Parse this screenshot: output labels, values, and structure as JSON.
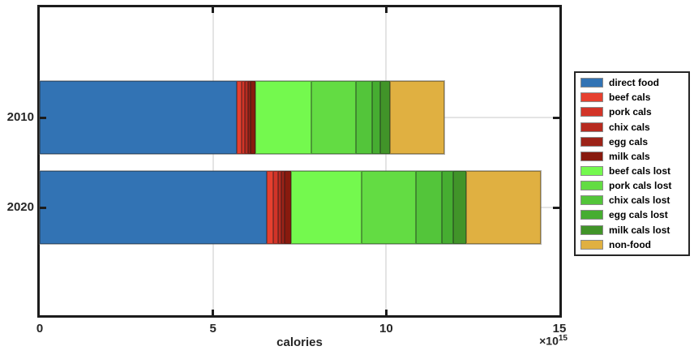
{
  "figure": {
    "xlabel": "calories",
    "scale_base": "×10",
    "scale_exponent": "15"
  },
  "chart_data": {
    "type": "bar",
    "orientation": "horizontal",
    "stacked": true,
    "title": "",
    "xlabel": "calories",
    "x_unit_scale": "×10^15",
    "xlim": [
      0,
      15
    ],
    "x_ticks": [
      0,
      5,
      10,
      15
    ],
    "grid": true,
    "legend_position": "outside-right",
    "categories": [
      "2010",
      "2020"
    ],
    "series": [
      {
        "name": "direct food",
        "color": "#3273B4",
        "values": [
          5.68,
          6.55
        ]
      },
      {
        "name": "beef cals",
        "color": "#E6402F",
        "values": [
          0.14,
          0.2
        ]
      },
      {
        "name": "pork cals",
        "color": "#D23428",
        "values": [
          0.11,
          0.14
        ]
      },
      {
        "name": "chix cals",
        "color": "#B72B20",
        "values": [
          0.08,
          0.09
        ]
      },
      {
        "name": "egg cals",
        "color": "#9C2318",
        "values": [
          0.08,
          0.09
        ]
      },
      {
        "name": "milk cals",
        "color": "#881A0E",
        "values": [
          0.13,
          0.18
        ]
      },
      {
        "name": "beef cals lost",
        "color": "#74F94E",
        "values": [
          1.63,
          2.04
        ]
      },
      {
        "name": "pork cals lost",
        "color": "#63DC43",
        "values": [
          1.28,
          1.57
        ]
      },
      {
        "name": "chix cals lost",
        "color": "#53C53A",
        "values": [
          0.47,
          0.74
        ]
      },
      {
        "name": "egg cals lost",
        "color": "#46AD31",
        "values": [
          0.23,
          0.33
        ]
      },
      {
        "name": "milk cals lost",
        "color": "#419429",
        "values": [
          0.27,
          0.39
        ]
      },
      {
        "name": "non-food",
        "color": "#E0B041",
        "values": [
          1.59,
          2.15
        ]
      }
    ],
    "totals": [
      11.68,
      14.46
    ],
    "frame_color": "#1c1c1c",
    "grid_color": "#e4e4e4"
  }
}
